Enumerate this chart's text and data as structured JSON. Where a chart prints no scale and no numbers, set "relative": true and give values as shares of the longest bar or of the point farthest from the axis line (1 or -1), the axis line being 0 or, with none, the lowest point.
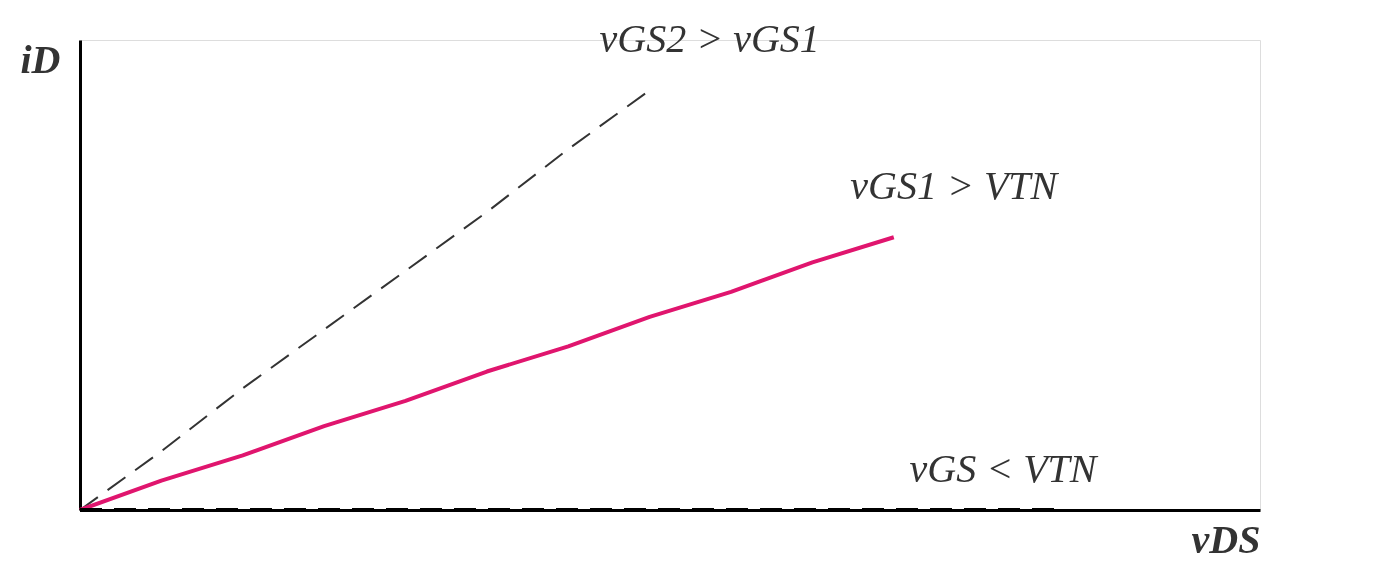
{
  "chart_data": {
    "type": "line",
    "relative": true,
    "xlabel": "vDS",
    "ylabel": "iD",
    "legend": false,
    "categories": [
      null,
      null,
      null,
      null,
      null,
      null,
      null,
      null,
      null,
      null,
      null,
      null,
      null
    ],
    "series": [
      {
        "name": "vGS2 > vGS1",
        "color": "#333333",
        "line_style": "dashed",
        "values": [
          0,
          0.14,
          0.29,
          0.43,
          0.57,
          0.71,
          0.86,
          1,
          null,
          null,
          null,
          null,
          null
        ]
      },
      {
        "name": "vGS1 > VTN",
        "color": "#e0156e",
        "line_style": "solid",
        "values": [
          0,
          0.07,
          0.13,
          0.2,
          0.26,
          0.33,
          0.39,
          0.46,
          0.52,
          0.59,
          0.65,
          null,
          null
        ]
      },
      {
        "name": "vGS < VTN",
        "color": "#000000",
        "line_style": "dashed",
        "values": [
          0,
          0,
          0,
          0,
          0,
          0,
          0,
          0,
          0,
          0,
          0,
          0,
          0
        ]
      }
    ]
  }
}
